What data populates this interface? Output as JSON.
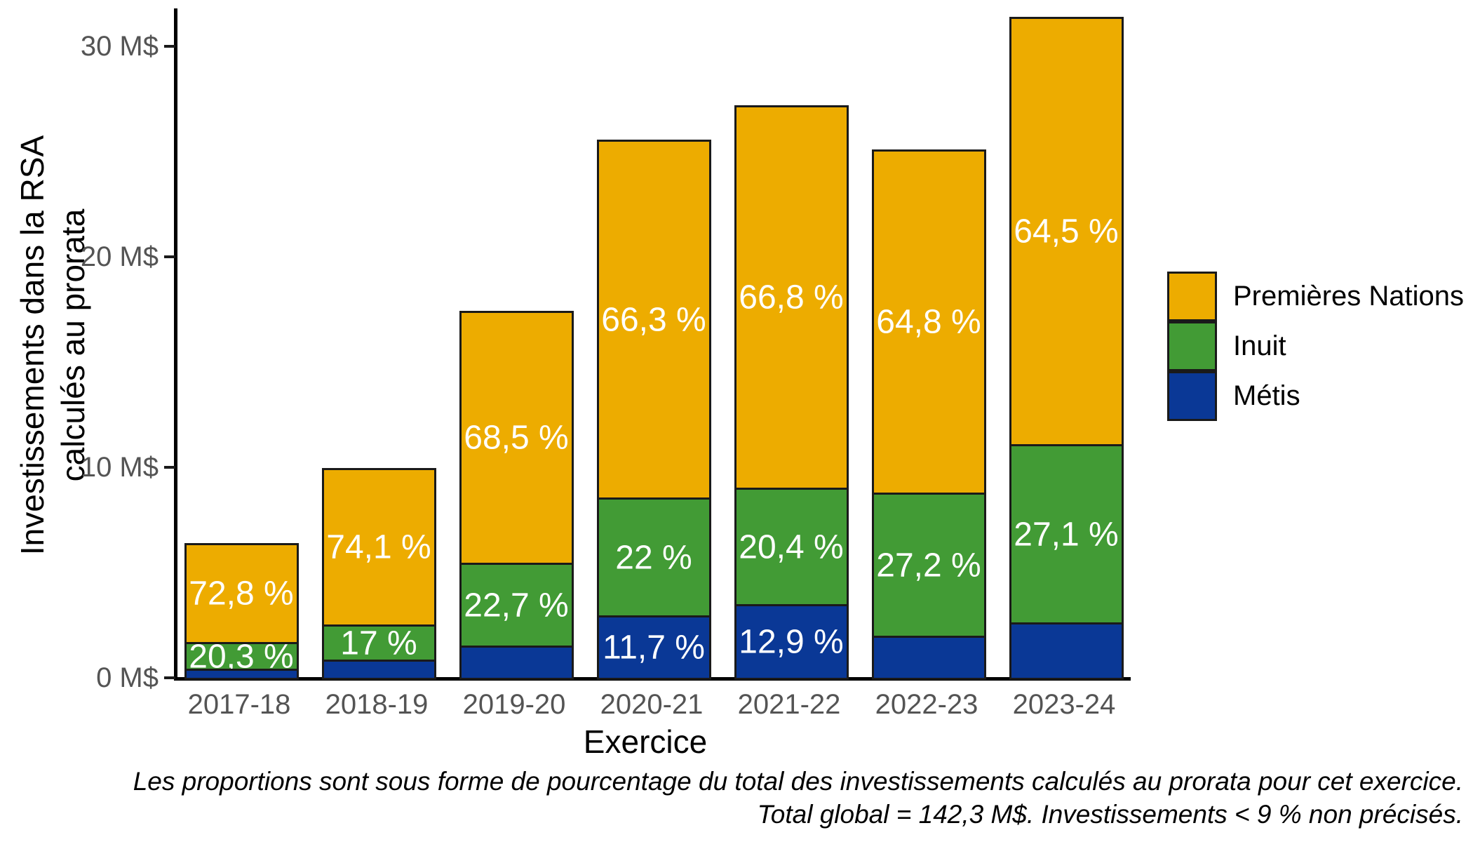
{
  "y_axis": {
    "title_line1": "Investissements dans la RSA",
    "title_line2": "calculés au prorata",
    "ticks": [
      {
        "value": 0,
        "label": "0 M$"
      },
      {
        "value": 10,
        "label": "10 M$"
      },
      {
        "value": 20,
        "label": "20 M$"
      },
      {
        "value": 30,
        "label": "30 M$"
      }
    ]
  },
  "x_axis": {
    "title": "Exercice"
  },
  "legend": [
    {
      "label": "Premières Nations",
      "color": "#EDAC00"
    },
    {
      "label": "Inuit",
      "color": "#429B35"
    },
    {
      "label": "Métis",
      "color": "#0A3896"
    }
  ],
  "caption": {
    "line1": "Les proportions sont sous forme de pourcentage du total des investissements calculés au prorata pour cet exercice.",
    "line2": "Total global = 142,3 M$. Investissements < 9 % non précisés."
  },
  "chart_data": {
    "type": "bar",
    "stacked": true,
    "unit": "M$",
    "xlabel": "Exercice",
    "ylabel": "Investissements dans la RSA calculés au prorata",
    "ylim": [
      0,
      31.5
    ],
    "yticks": [
      0,
      10,
      20,
      30
    ],
    "grid": false,
    "legend_position": "right",
    "categories": [
      "2017-18",
      "2018-19",
      "2019-20",
      "2020-21",
      "2021-22",
      "2022-23",
      "2023-24"
    ],
    "totals": [
      6.3,
      9.9,
      17.3,
      25.5,
      27.1,
      25.0,
      31.3
    ],
    "series": [
      {
        "name": "Métis",
        "color": "#0A3896",
        "values": [
          0.43,
          0.88,
          1.52,
          2.98,
          3.5,
          2.0,
          2.63
        ],
        "labels": [
          null,
          null,
          null,
          "11,7 %",
          "12,9 %",
          null,
          null
        ]
      },
      {
        "name": "Inuit",
        "color": "#429B35",
        "values": [
          1.28,
          1.68,
          3.93,
          5.61,
          5.53,
          6.8,
          8.48
        ],
        "labels": [
          "20,3 %",
          "17 %",
          "22,7 %",
          "22 %",
          "20,4 %",
          "27,2 %",
          "27,1 %"
        ]
      },
      {
        "name": "Premières Nations",
        "color": "#EDAC00",
        "values": [
          4.59,
          7.34,
          11.85,
          16.91,
          18.07,
          16.2,
          20.19
        ],
        "labels": [
          "72,8 %",
          "74,1 %",
          "68,5 %",
          "66,3 %",
          "66,8 %",
          "64,8 %",
          "64,5 %"
        ]
      }
    ]
  }
}
